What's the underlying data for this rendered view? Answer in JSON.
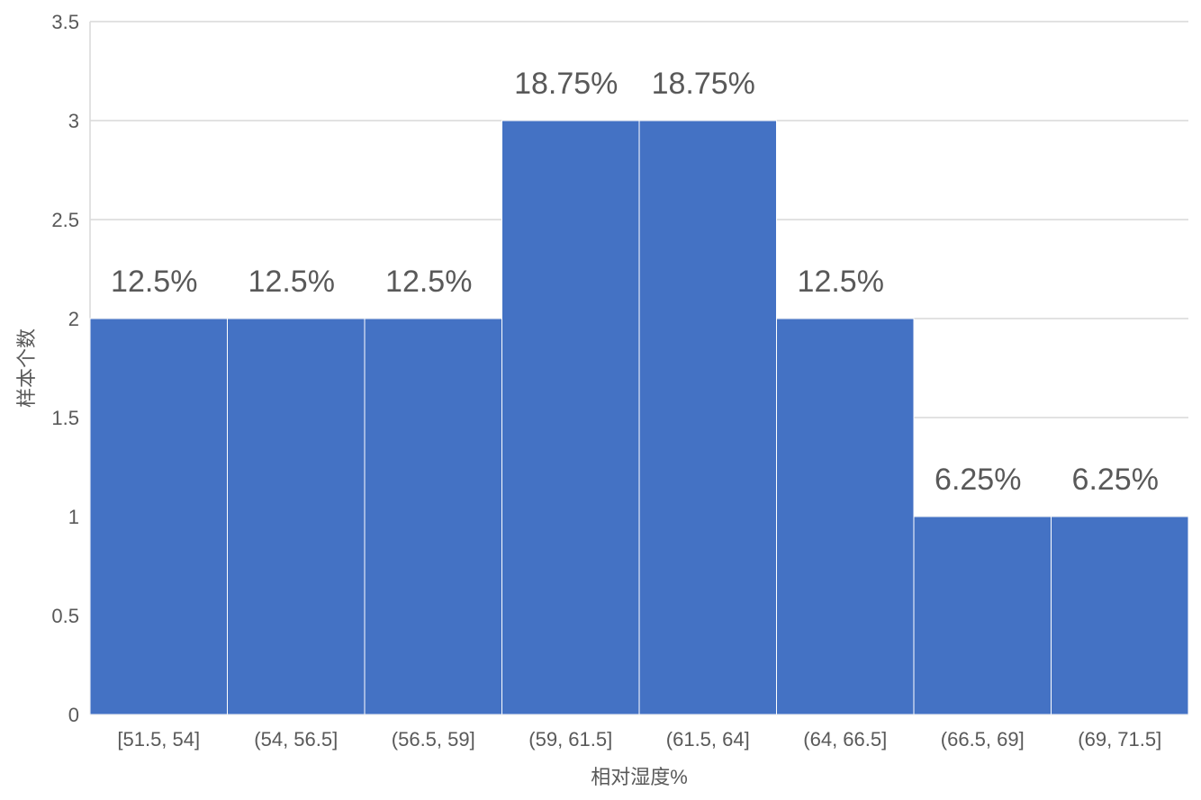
{
  "chart_data": {
    "type": "bar",
    "categories": [
      "[51.5, 54]",
      "(54, 56.5]",
      "(56.5, 59]",
      "(59, 61.5]",
      "(61.5, 64]",
      "(64, 66.5]",
      "(66.5, 69]",
      "(69, 71.5]"
    ],
    "values": [
      2,
      2,
      2,
      3,
      3,
      2,
      1,
      1
    ],
    "data_labels": [
      "12.5%",
      "12.5%",
      "12.5%",
      "18.75%",
      "18.75%",
      "12.5%",
      "6.25%",
      "6.25%"
    ],
    "xlabel": "相对湿度%",
    "ylabel": "样本个数",
    "ylim": [
      0,
      3.5
    ],
    "yticks": [
      "0",
      "0.5",
      "1",
      "1.5",
      "2",
      "2.5",
      "3",
      "3.5"
    ],
    "grid": true,
    "bar_color": "#4472C4",
    "grid_color": "#D9D9D9",
    "text_color": "#595959"
  }
}
